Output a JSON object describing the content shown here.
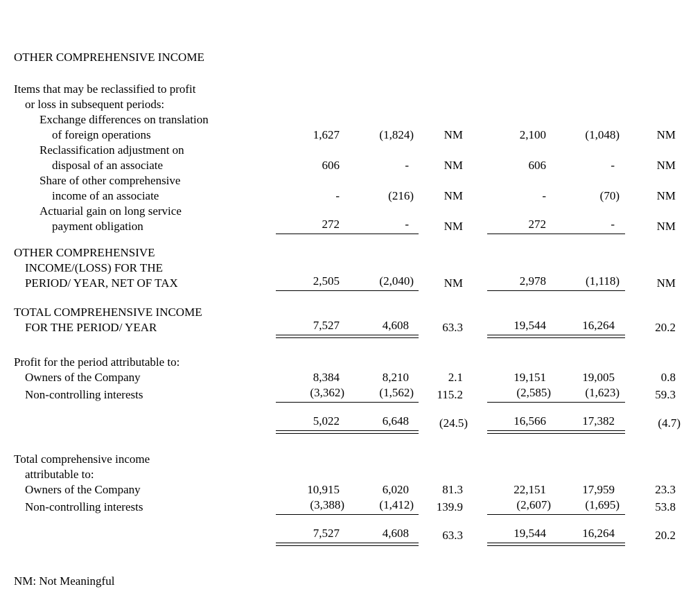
{
  "background": "#ffffff",
  "text_color": "#000000",
  "title": "OTHER COMPREHENSIVE INCOME",
  "footnote": "NM: Not Meaningful",
  "table": {
    "rows": [
      {
        "lines": [
          "Items that may be reclassified to profit",
          "or loss in subsequent periods:"
        ],
        "values": []
      },
      {
        "lines": [
          "Exchange differences on translation",
          "of foreign operations"
        ],
        "values": [
          "1,627",
          "(1,824)",
          "NM",
          "2,100",
          "(1,048)",
          "NM"
        ]
      },
      {
        "lines": [
          "Reclassification adjustment on",
          "disposal of an associate"
        ],
        "values": [
          "606",
          "-",
          "NM",
          "606",
          "-",
          "NM"
        ]
      },
      {
        "lines": [
          "Share of other comprehensive",
          "income of an associate"
        ],
        "values": [
          "-",
          "(216)",
          "NM",
          "-",
          "(70)",
          "NM"
        ]
      },
      {
        "lines": [
          "Actuarial gain on long service",
          "payment obligation"
        ],
        "values": [
          "272",
          "-",
          "NM",
          "272",
          "-",
          "NM"
        ],
        "rule": "single"
      },
      {
        "lines": [
          "OTHER COMPREHENSIVE",
          "INCOME/(LOSS) FOR THE",
          "PERIOD/ YEAR, NET OF TAX"
        ],
        "values": [
          "2,505",
          "(2,040)",
          "NM",
          "2,978",
          "(1,118)",
          "NM"
        ],
        "rule": "single"
      },
      {
        "lines": [
          "TOTAL COMPREHENSIVE INCOME",
          "FOR THE PERIOD/ YEAR"
        ],
        "values": [
          "7,527",
          "4,608",
          "63.3",
          "19,544",
          "16,264",
          "20.2"
        ],
        "rule": "double"
      },
      {
        "lines": [
          "Profit for the period attributable to:"
        ],
        "values": []
      },
      {
        "lines": [
          "Owners of the Company"
        ],
        "values": [
          "8,384",
          "8,210",
          "2.1",
          "19,151",
          "19,005",
          "0.8"
        ]
      },
      {
        "lines": [
          "Non-controlling interests"
        ],
        "values": [
          "(3,362)",
          "(1,562)",
          "115.2",
          "(2,585)",
          "(1,623)",
          "59.3"
        ],
        "rule": "single"
      },
      {
        "lines": [],
        "values": [
          "5,022",
          "6,648",
          "(24.5)",
          "16,566",
          "17,382",
          "(4.7)"
        ],
        "rule": "double"
      },
      {
        "lines": [
          "Total comprehensive income",
          "attributable to:"
        ],
        "values": []
      },
      {
        "lines": [
          "Owners of the Company"
        ],
        "values": [
          "10,915",
          "6,020",
          "81.3",
          "22,151",
          "17,959",
          "23.3"
        ]
      },
      {
        "lines": [
          "Non-controlling interests"
        ],
        "values": [
          "(3,388)",
          "(1,412)",
          "139.9",
          "(2,607)",
          "(1,695)",
          "53.8"
        ],
        "rule": "single"
      },
      {
        "lines": [],
        "values": [
          "7,527",
          "4,608",
          "63.3",
          "19,544",
          "16,264",
          "20.2"
        ],
        "rule": "double"
      }
    ]
  }
}
